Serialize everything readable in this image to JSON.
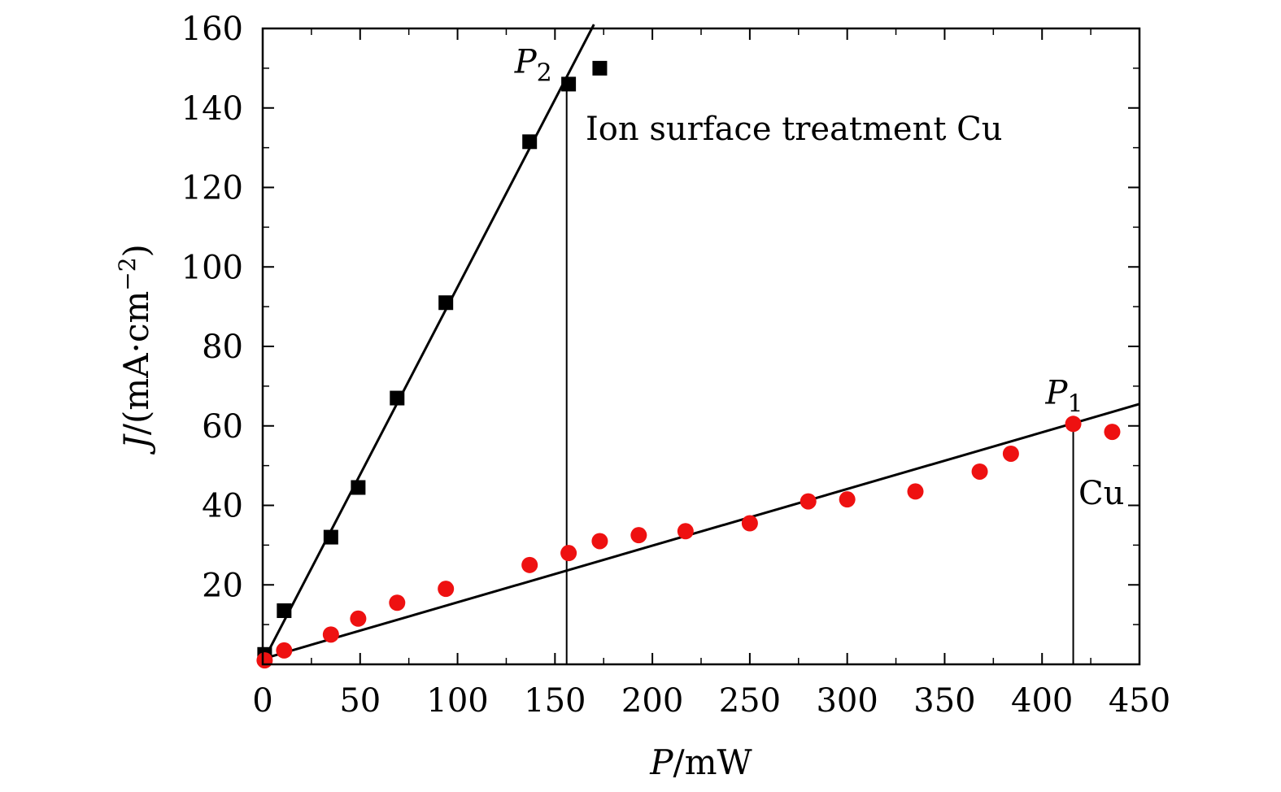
{
  "chart_data": {
    "type": "scatter",
    "xlabel": {
      "var": "P",
      "unit": "/mW"
    },
    "ylabel": {
      "var": "J",
      "unit": "/(mA·cm",
      "sup": "−2",
      "close": ")"
    },
    "xlim": [
      0,
      450
    ],
    "ylim": [
      0,
      160
    ],
    "x_ticks": [
      0,
      50,
      100,
      150,
      200,
      250,
      300,
      350,
      400,
      450
    ],
    "y_ticks": [
      20,
      40,
      60,
      80,
      100,
      120,
      140,
      160
    ],
    "x_tick_labels": [
      "0",
      "50",
      "100",
      "150",
      "200",
      "250",
      "300",
      "350",
      "400",
      "450"
    ],
    "y_tick_labels": [
      "20",
      "40",
      "60",
      "80",
      "100",
      "120",
      "140",
      "160"
    ],
    "series": [
      {
        "name": "Ion surface treatment Cu",
        "marker": "square",
        "color": "#000000",
        "x": [
          1,
          11,
          35,
          49,
          69,
          94,
          137,
          157,
          173
        ],
        "y": [
          2.5,
          13.5,
          32,
          44.5,
          67,
          91,
          131.5,
          146,
          150
        ],
        "fit": {
          "x": [
            1,
            170
          ],
          "y": [
            1.5,
            161
          ]
        }
      },
      {
        "name": "Cu",
        "marker": "circle",
        "color": "#ee1111",
        "x": [
          1,
          11,
          35,
          49,
          69,
          94,
          137,
          157,
          173,
          193,
          217,
          250,
          280,
          300,
          335,
          368,
          384,
          416,
          436
        ],
        "y": [
          1,
          3.5,
          7.5,
          11.5,
          15.5,
          19,
          25,
          28,
          31,
          32.5,
          33.5,
          35.5,
          41,
          41.5,
          43.5,
          48.5,
          53,
          60.5,
          58.5
        ],
        "fit": {
          "x": [
            1,
            450
          ],
          "y": [
            1.5,
            65.5
          ]
        }
      }
    ],
    "markers": [
      {
        "var": "P",
        "sub": "2",
        "x": 156,
        "y": 146,
        "line_to": 0
      },
      {
        "var": "P",
        "sub": "1",
        "x": 416,
        "y": 60.5,
        "line_to": 0
      }
    ],
    "annotations": {
      "series1_label": "Ion surface treatment Cu",
      "series2_label": "Cu"
    }
  }
}
